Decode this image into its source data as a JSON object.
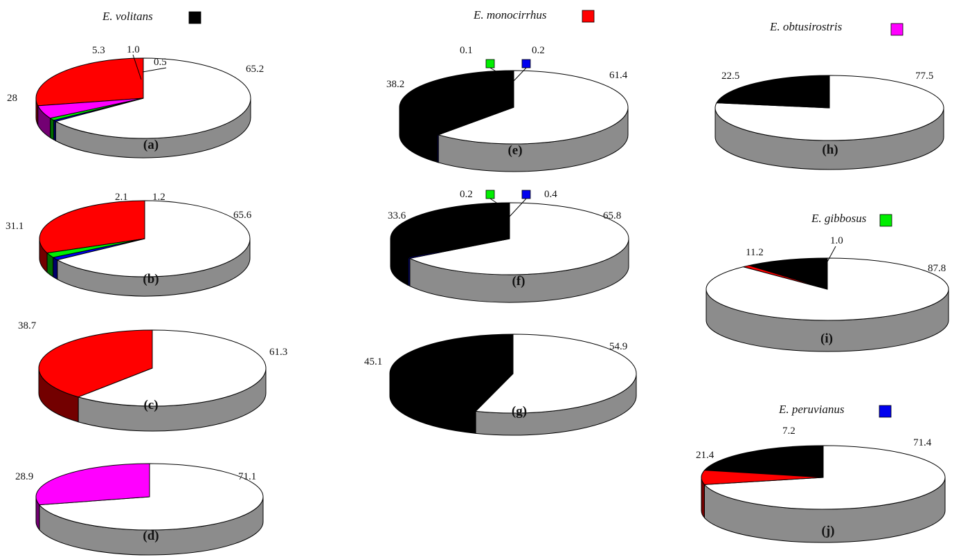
{
  "colors": {
    "E. volitans": "#000000",
    "E. monocirrhus": "#ff0000",
    "E. obtusirostris": "#ff00ff",
    "E. gibbosus": "#00ee00",
    "E. peruvianus": "#0000ee",
    "remainder": "#ffffff",
    "side_remainder": "#8c8c8c"
  },
  "species_titles": [
    {
      "id": "volitans",
      "text": "E. volitans",
      "color": "#000000"
    },
    {
      "id": "monocirrhus",
      "text": "E. monocirrhus",
      "color": "#ff0000"
    },
    {
      "id": "obtusirostris",
      "text": "E. obtusirostris",
      "color": "#ff00ff"
    },
    {
      "id": "gibbosus",
      "text": "E. gibbosus",
      "color": "#00ee00"
    },
    {
      "id": "peruvianus",
      "text": "E. peruvianus",
      "color": "#0000ee"
    }
  ],
  "chart_data": [
    {
      "type": "pie",
      "panel": "(a)",
      "slices": [
        {
          "label": "65.2",
          "value": 65.2,
          "species": "remainder"
        },
        {
          "label": "28",
          "value": 28.0,
          "species": "E. monocirrhus"
        },
        {
          "label": "5.3",
          "value": 5.3,
          "species": "E. obtusirostris"
        },
        {
          "label": "1.0",
          "value": 1.0,
          "species": "E. gibbosus"
        },
        {
          "label": "0.5",
          "value": 0.5,
          "species": "E. peruvianus"
        }
      ]
    },
    {
      "type": "pie",
      "panel": "(b)",
      "slices": [
        {
          "label": "65.6",
          "value": 65.6,
          "species": "remainder"
        },
        {
          "label": "31.1",
          "value": 31.1,
          "species": "E. monocirrhus"
        },
        {
          "label": "2.1",
          "value": 2.1,
          "species": "E. gibbosus"
        },
        {
          "label": "1.2",
          "value": 1.2,
          "species": "E. peruvianus"
        }
      ]
    },
    {
      "type": "pie",
      "panel": "(c)",
      "slices": [
        {
          "label": "61.3",
          "value": 61.3,
          "species": "remainder"
        },
        {
          "label": "38.7",
          "value": 38.7,
          "species": "E. monocirrhus"
        }
      ]
    },
    {
      "type": "pie",
      "panel": "(d)",
      "slices": [
        {
          "label": "71.1",
          "value": 71.1,
          "species": "remainder"
        },
        {
          "label": "28.9",
          "value": 28.9,
          "species": "E. obtusirostris"
        }
      ]
    },
    {
      "type": "pie",
      "panel": "(e)",
      "slices": [
        {
          "label": "61.4",
          "value": 61.4,
          "species": "remainder"
        },
        {
          "label": "38.2",
          "value": 38.2,
          "species": "E. volitans"
        },
        {
          "label": "0.1",
          "value": 0.1,
          "species": "E. gibbosus"
        },
        {
          "label": "0.2",
          "value": 0.2,
          "species": "E. peruvianus"
        }
      ]
    },
    {
      "type": "pie",
      "panel": "(f)",
      "slices": [
        {
          "label": "65.8",
          "value": 65.8,
          "species": "remainder"
        },
        {
          "label": "33.6",
          "value": 33.6,
          "species": "E. volitans"
        },
        {
          "label": "0.2",
          "value": 0.2,
          "species": "E. gibbosus"
        },
        {
          "label": "0.4",
          "value": 0.4,
          "species": "E. peruvianus"
        }
      ]
    },
    {
      "type": "pie",
      "panel": "(g)",
      "slices": [
        {
          "label": "54.9",
          "value": 54.9,
          "species": "remainder"
        },
        {
          "label": "45.1",
          "value": 45.1,
          "species": "E. volitans"
        }
      ]
    },
    {
      "type": "pie",
      "panel": "(h)",
      "slices": [
        {
          "label": "77.5",
          "value": 77.5,
          "species": "remainder"
        },
        {
          "label": "22.5",
          "value": 22.5,
          "species": "E. volitans"
        }
      ]
    },
    {
      "type": "pie",
      "panel": "(i)",
      "slices": [
        {
          "label": "87.8",
          "value": 87.8,
          "species": "remainder"
        },
        {
          "label": "11.2",
          "value": 11.2,
          "species": "E. volitans"
        },
        {
          "label": "1.0",
          "value": 1.0,
          "species": "E. monocirrhus"
        }
      ]
    },
    {
      "type": "pie",
      "panel": "(j)",
      "slices": [
        {
          "label": "71.4",
          "value": 71.4,
          "species": "remainder"
        },
        {
          "label": "21.4",
          "value": 21.4,
          "species": "E. volitans"
        },
        {
          "label": "7.2",
          "value": 7.2,
          "species": "E. monocirrhus"
        }
      ]
    }
  ]
}
